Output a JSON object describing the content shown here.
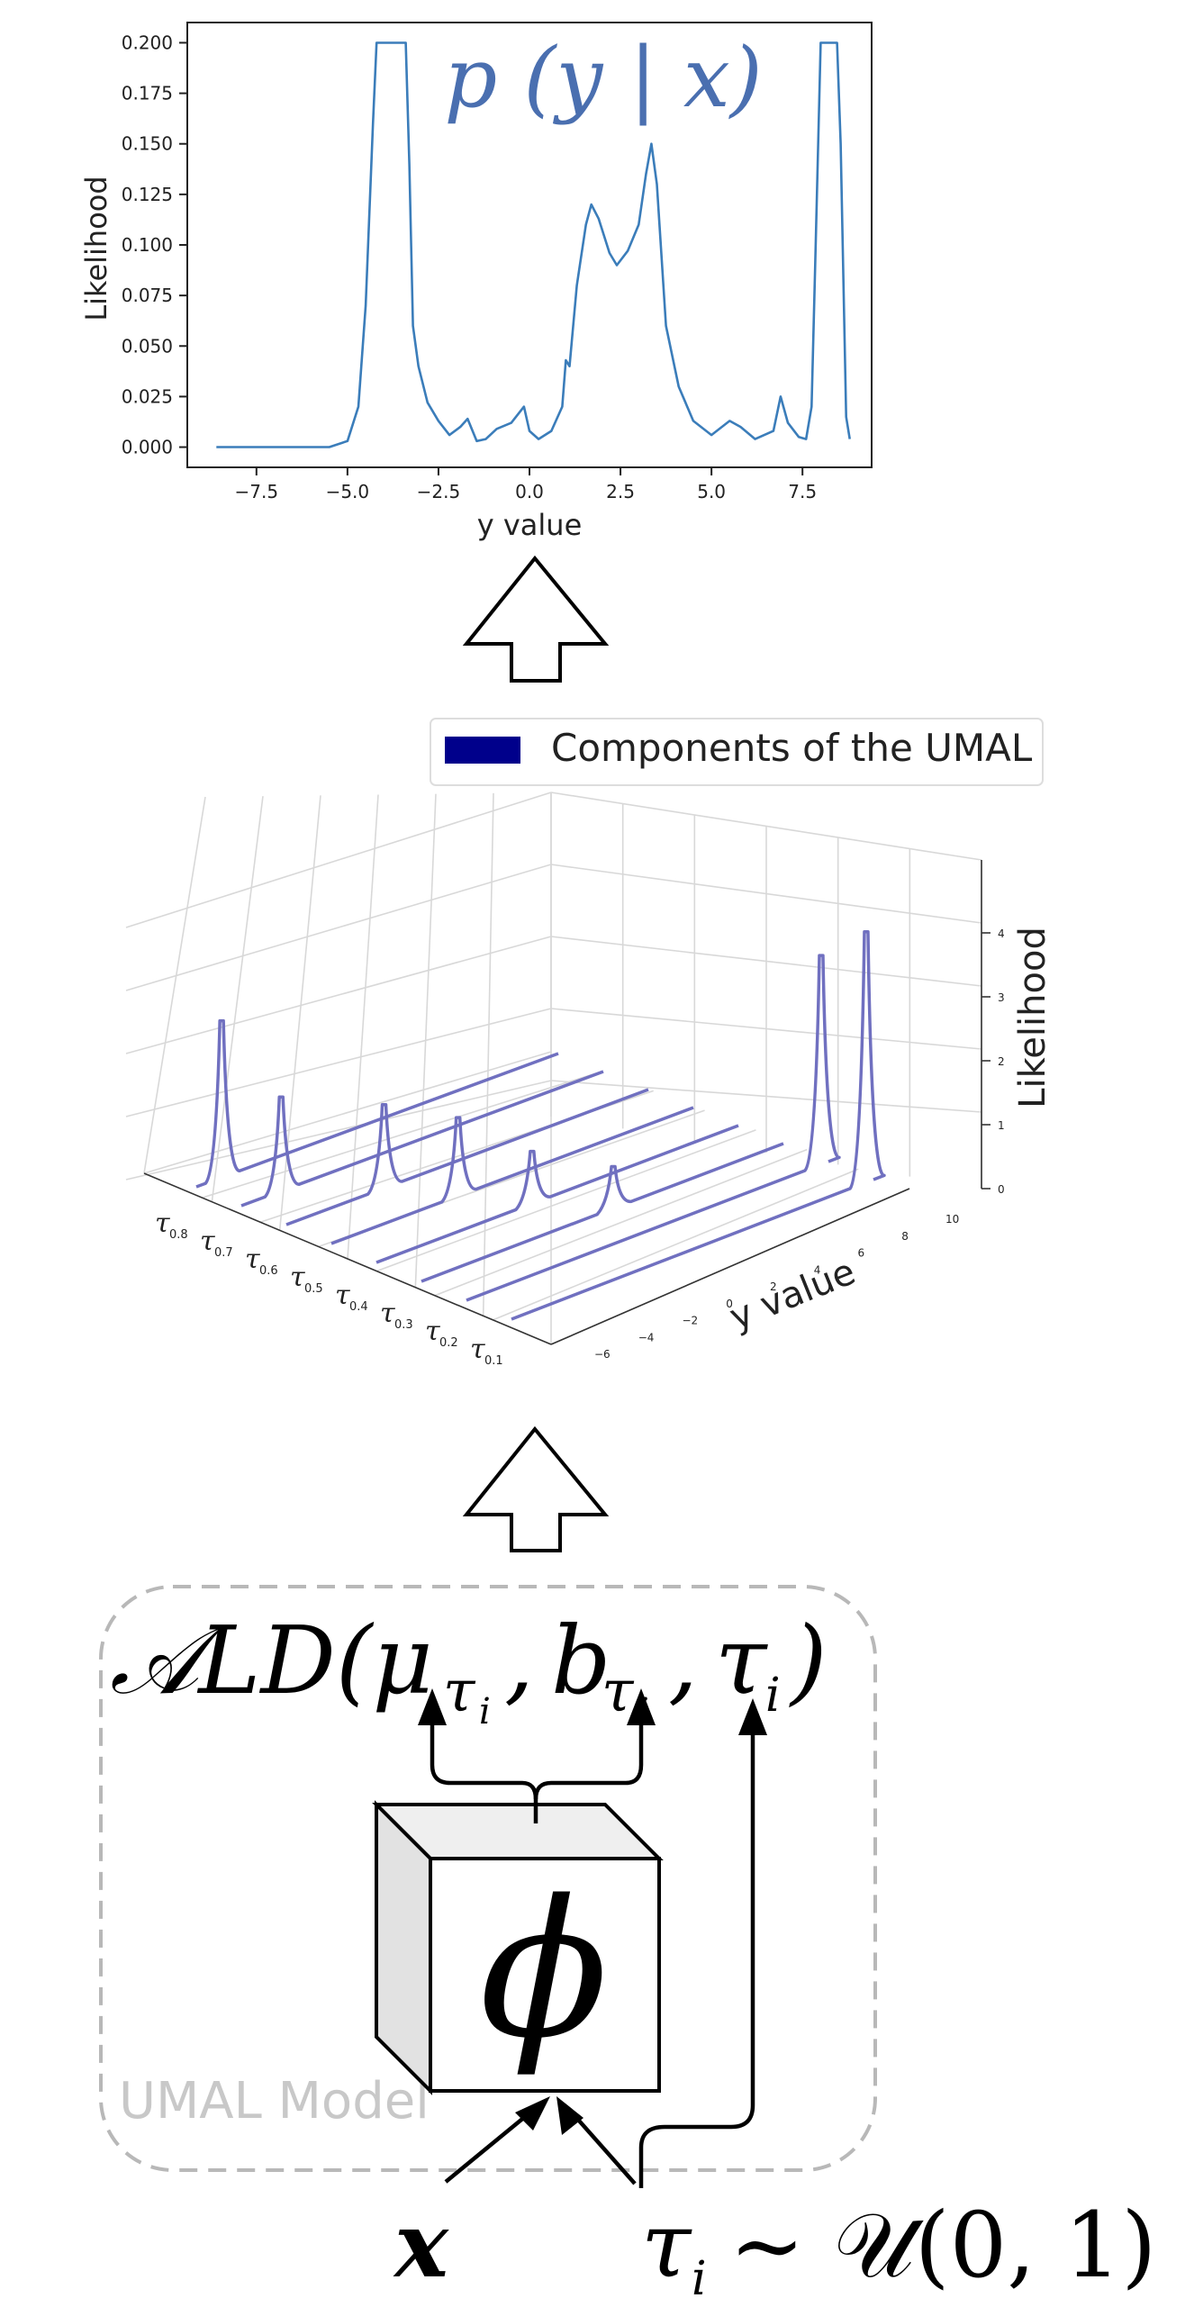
{
  "top_chart": {
    "chart_data": {
      "type": "line",
      "title": "p (y | x)",
      "xlabel": "y value",
      "ylabel": "Likelihood",
      "xlim": [
        -9.4,
        9.4
      ],
      "ylim": [
        -0.01,
        0.21
      ],
      "x_ticks": [
        "−7.5",
        "−5.0",
        "−2.5",
        "0.0",
        "2.5",
        "5.0",
        "7.5"
      ],
      "y_ticks": [
        "0.000",
        "0.025",
        "0.050",
        "0.075",
        "0.100",
        "0.125",
        "0.150",
        "0.175",
        "0.200"
      ],
      "x_tick_values": [
        -7.5,
        -5.0,
        -2.5,
        0.0,
        2.5,
        5.0,
        7.5
      ],
      "y_tick_values": [
        0,
        0.025,
        0.05,
        0.075,
        0.1,
        0.125,
        0.15,
        0.175,
        0.2
      ],
      "series": [
        {
          "color": "#3b7dba",
          "x": [
            -8.6,
            -6.5,
            -5.5,
            -5.0,
            -4.7,
            -4.5,
            -4.3,
            -4.2,
            -4.05,
            -3.9,
            -3.6,
            -3.4,
            -3.3,
            -3.2,
            -3.05,
            -2.8,
            -2.5,
            -2.2,
            -1.9,
            -1.7,
            -1.45,
            -1.2,
            -0.9,
            -0.5,
            -0.15,
            0.0,
            0.25,
            0.6,
            0.9,
            1.0,
            1.1,
            1.3,
            1.55,
            1.7,
            1.9,
            2.2,
            2.4,
            2.7,
            3.0,
            3.2,
            3.35,
            3.5,
            3.75,
            4.1,
            4.5,
            5.0,
            5.5,
            5.8,
            6.2,
            6.7,
            6.9,
            7.1,
            7.4,
            7.6,
            7.75,
            7.85,
            8.0,
            8.3,
            8.45,
            8.55,
            8.7,
            8.8
          ],
          "y": [
            0.0,
            0.0,
            0.0,
            0.003,
            0.02,
            0.07,
            0.16,
            0.2,
            0.2,
            0.2,
            0.2,
            0.2,
            0.14,
            0.06,
            0.04,
            0.022,
            0.013,
            0.006,
            0.01,
            0.014,
            0.003,
            0.004,
            0.009,
            0.012,
            0.02,
            0.008,
            0.004,
            0.008,
            0.02,
            0.043,
            0.04,
            0.08,
            0.11,
            0.12,
            0.113,
            0.096,
            0.09,
            0.097,
            0.11,
            0.135,
            0.15,
            0.13,
            0.06,
            0.03,
            0.013,
            0.006,
            0.013,
            0.01,
            0.004,
            0.008,
            0.025,
            0.012,
            0.005,
            0.004,
            0.02,
            0.09,
            0.2,
            0.2,
            0.2,
            0.15,
            0.015,
            0.004
          ]
        }
      ]
    }
  },
  "arrow_up_1": {
    "icon": "up-arrow-icon"
  },
  "arrow_up_2": {
    "icon": "up-arrow-icon"
  },
  "mid_chart": {
    "legend_label": "Components of the UMAL",
    "legend_color": "#00008b",
    "zlabel": "Likelihood",
    "ylabel": "y value",
    "z_ticks": [
      "0",
      "1",
      "2",
      "3",
      "4"
    ],
    "y_ticks": [
      "−6",
      "−4",
      "−2",
      "0",
      "2",
      "4",
      "6",
      "8",
      "10"
    ],
    "tau_labels": [
      {
        "sym": "τ",
        "sub": "0.8"
      },
      {
        "sym": "τ",
        "sub": "0.7"
      },
      {
        "sym": "τ",
        "sub": "0.6"
      },
      {
        "sym": "τ",
        "sub": "0.5"
      },
      {
        "sym": "τ",
        "sub": "0.4"
      },
      {
        "sym": "τ",
        "sub": "0.3"
      },
      {
        "sym": "τ",
        "sub": "0.2"
      },
      {
        "sym": "τ",
        "sub": "0.1"
      }
    ],
    "chart_data": {
      "type": "line",
      "series_count": 8,
      "peak_heights": [
        3.0,
        1.8,
        1.6,
        1.5,
        1.0,
        0.8,
        4.0,
        4.8
      ],
      "line_color": "#7070c0"
    }
  },
  "model": {
    "ald_text": "𝒜LD(μ",
    "tau_i": "τ",
    "sub_i": "i",
    "b": "b",
    "comma": ",",
    "close": ")",
    "phi": "ϕ",
    "box_label": "UMAL Model",
    "input_x": "x",
    "input_tau": "τ",
    "input_tau_sub": "i",
    "input_dist": "∼ 𝒰(0, 1)"
  }
}
